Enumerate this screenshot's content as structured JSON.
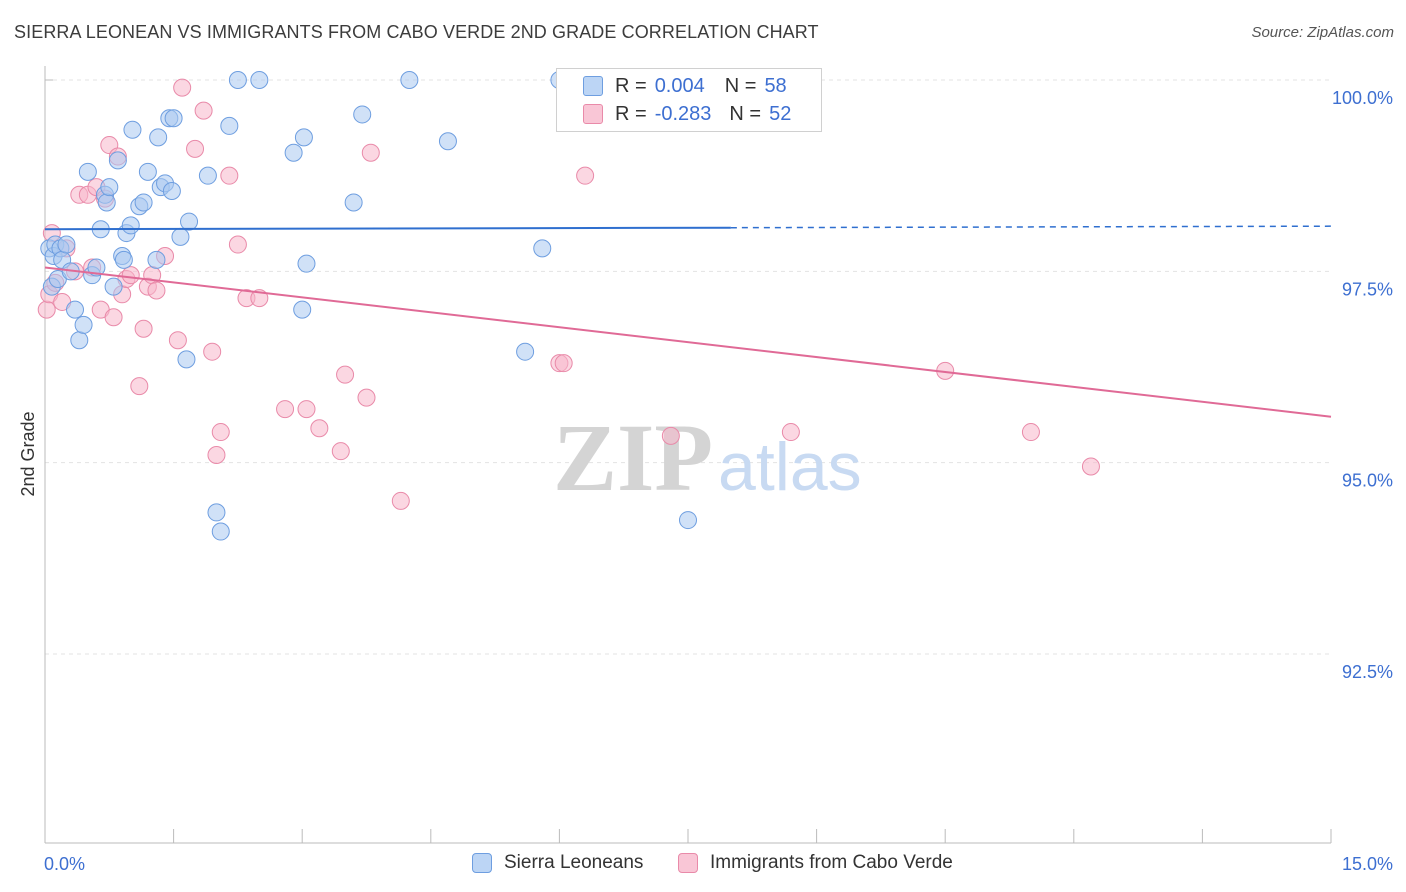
{
  "title": "SIERRA LEONEAN VS IMMIGRANTS FROM CABO VERDE 2ND GRADE CORRELATION CHART",
  "source": "Source: ZipAtlas.com",
  "legend": {
    "rows": [
      {
        "r_label": "R =",
        "r_value": "0.004",
        "n_label": "N =",
        "n_value": "58"
      },
      {
        "r_label": "R =",
        "r_value": "-0.283",
        "n_label": "N =",
        "n_value": "52"
      }
    ]
  },
  "bottom_legend": [
    "Sierra Leoneans",
    "Immigrants from Cabo Verde"
  ],
  "colors": {
    "blue_fill": "#a9c8f0",
    "blue_stroke": "#6e9ee0",
    "blue_line": "#2f6fcf",
    "pink_fill": "#f7b6cb",
    "pink_stroke": "#e98aa9",
    "pink_line": "#e06a96",
    "tick_label": "#3d6fd1",
    "grid": "#e3e3e3"
  },
  "chart_data": {
    "type": "scatter",
    "title": "SIERRA LEONEAN VS IMMIGRANTS FROM CABO VERDE 2ND GRADE CORRELATION CHART",
    "xlabel": "",
    "ylabel": "2nd Grade",
    "xlim": [
      0,
      15
    ],
    "ylim": [
      90.5,
      100.4
    ],
    "x_tick_labels": [
      "0.0%",
      "15.0%"
    ],
    "y_ticks": [
      92.5,
      95.0,
      97.5,
      100.0
    ],
    "y_tick_labels": [
      "92.5%",
      "95.0%",
      "97.5%",
      "100.0%"
    ],
    "grid": true,
    "legend_position": "top-center",
    "watermark": {
      "zip": "ZIP",
      "atlas": "atlas"
    },
    "series": [
      {
        "name": "Sierra Leoneans",
        "r": 0.004,
        "n": 58,
        "trend": {
          "x0": 0,
          "y0": 98.05,
          "x1": 8.0,
          "y1": 98.07,
          "dash_to_x": 15,
          "dash_to_y": 98.09
        },
        "points": [
          [
            0.05,
            97.8
          ],
          [
            0.08,
            97.3
          ],
          [
            0.1,
            97.7
          ],
          [
            0.12,
            97.85
          ],
          [
            0.15,
            97.4
          ],
          [
            0.18,
            97.8
          ],
          [
            0.2,
            97.65
          ],
          [
            0.25,
            97.85
          ],
          [
            0.3,
            97.5
          ],
          [
            0.35,
            97.0
          ],
          [
            0.4,
            96.6
          ],
          [
            0.45,
            96.8
          ],
          [
            0.5,
            98.8
          ],
          [
            0.55,
            97.45
          ],
          [
            0.6,
            97.55
          ],
          [
            0.65,
            98.05
          ],
          [
            0.7,
            98.5
          ],
          [
            0.72,
            98.4
          ],
          [
            0.75,
            98.6
          ],
          [
            0.8,
            97.3
          ],
          [
            0.85,
            98.95
          ],
          [
            0.9,
            97.7
          ],
          [
            0.92,
            97.65
          ],
          [
            0.95,
            98.0
          ],
          [
            1.0,
            98.1
          ],
          [
            1.02,
            99.35
          ],
          [
            1.1,
            98.35
          ],
          [
            1.15,
            98.4
          ],
          [
            1.2,
            98.8
          ],
          [
            1.3,
            97.65
          ],
          [
            1.32,
            99.25
          ],
          [
            1.35,
            98.6
          ],
          [
            1.4,
            98.65
          ],
          [
            1.45,
            99.5
          ],
          [
            1.48,
            98.55
          ],
          [
            1.5,
            99.5
          ],
          [
            1.58,
            97.95
          ],
          [
            1.65,
            96.35
          ],
          [
            1.68,
            98.15
          ],
          [
            1.9,
            98.75
          ],
          [
            2.0,
            94.35
          ],
          [
            2.05,
            94.1
          ],
          [
            2.15,
            99.4
          ],
          [
            2.25,
            100.0
          ],
          [
            2.5,
            100.0
          ],
          [
            2.9,
            99.05
          ],
          [
            3.0,
            97.0
          ],
          [
            3.02,
            99.25
          ],
          [
            3.05,
            97.6
          ],
          [
            3.6,
            98.4
          ],
          [
            3.7,
            99.55
          ],
          [
            4.25,
            100.0
          ],
          [
            4.7,
            99.2
          ],
          [
            5.6,
            96.45
          ],
          [
            5.8,
            97.8
          ],
          [
            6.0,
            100.0
          ],
          [
            7.5,
            94.25
          ],
          [
            7.9,
            100.0
          ]
        ]
      },
      {
        "name": "Immigrants from Cabo Verde",
        "r": -0.283,
        "n": 52,
        "trend": {
          "x0": 0,
          "y0": 97.55,
          "x1": 15,
          "y1": 95.6
        },
        "points": [
          [
            0.02,
            97.0
          ],
          [
            0.05,
            97.2
          ],
          [
            0.08,
            98.0
          ],
          [
            0.12,
            97.35
          ],
          [
            0.2,
            97.1
          ],
          [
            0.25,
            97.8
          ],
          [
            0.35,
            97.5
          ],
          [
            0.4,
            98.5
          ],
          [
            0.5,
            98.5
          ],
          [
            0.55,
            97.55
          ],
          [
            0.6,
            98.6
          ],
          [
            0.65,
            97.0
          ],
          [
            0.7,
            98.45
          ],
          [
            0.75,
            99.15
          ],
          [
            0.8,
            96.9
          ],
          [
            0.85,
            99.0
          ],
          [
            0.9,
            97.2
          ],
          [
            0.95,
            97.4
          ],
          [
            1.0,
            97.45
          ],
          [
            1.1,
            96.0
          ],
          [
            1.15,
            96.75
          ],
          [
            1.2,
            97.3
          ],
          [
            1.25,
            97.45
          ],
          [
            1.3,
            97.25
          ],
          [
            1.4,
            97.7
          ],
          [
            1.55,
            96.6
          ],
          [
            1.6,
            99.9
          ],
          [
            1.75,
            99.1
          ],
          [
            1.85,
            99.6
          ],
          [
            1.95,
            96.45
          ],
          [
            2.0,
            95.1
          ],
          [
            2.05,
            95.4
          ],
          [
            2.15,
            98.75
          ],
          [
            2.25,
            97.85
          ],
          [
            2.35,
            97.15
          ],
          [
            2.5,
            97.15
          ],
          [
            2.8,
            95.7
          ],
          [
            3.05,
            95.7
          ],
          [
            3.2,
            95.45
          ],
          [
            3.45,
            95.15
          ],
          [
            3.5,
            96.15
          ],
          [
            3.75,
            95.85
          ],
          [
            3.8,
            99.05
          ],
          [
            4.15,
            94.5
          ],
          [
            6.0,
            96.3
          ],
          [
            6.05,
            96.3
          ],
          [
            6.3,
            98.75
          ],
          [
            7.3,
            95.35
          ],
          [
            8.7,
            95.4
          ],
          [
            10.5,
            96.2
          ],
          [
            11.5,
            95.4
          ],
          [
            12.2,
            94.95
          ]
        ]
      }
    ]
  }
}
